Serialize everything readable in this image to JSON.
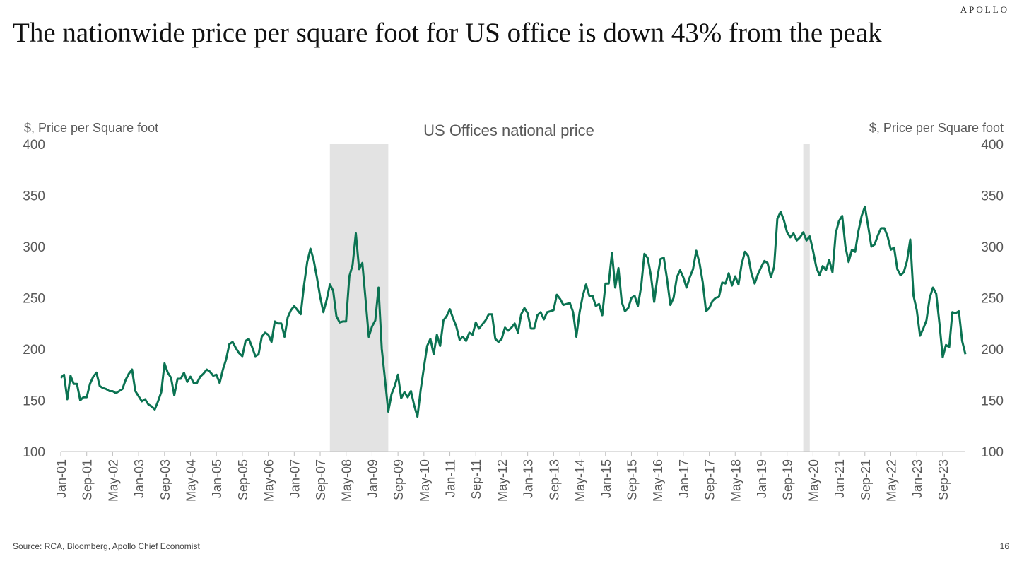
{
  "brand": "APOLLO",
  "headline": "The nationwide price per square foot for US office is down 43% from the peak",
  "source": "Source: RCA, Bloomberg, Apollo Chief Economist",
  "page_number": "16",
  "colors": {
    "line": "#0b7352",
    "recession_shade": "#e3e3e3",
    "axis_text": "#595959"
  },
  "chart_data": {
    "type": "line",
    "title": "US Offices national price",
    "ylabel_left": "$, Price per Square foot",
    "ylabel_right": "$, Price per Square foot",
    "ylim": [
      100,
      400
    ],
    "yticks": [
      100,
      150,
      200,
      250,
      300,
      350,
      400
    ],
    "grid": false,
    "x_tick_labels": [
      "Jan-01",
      "Sep-01",
      "May-02",
      "Jan-03",
      "Sep-03",
      "May-04",
      "Jan-05",
      "Sep-05",
      "May-06",
      "Jan-07",
      "Sep-07",
      "May-08",
      "Jan-09",
      "Sep-09",
      "May-10",
      "Jan-11",
      "Sep-11",
      "May-12",
      "Jan-13",
      "Sep-13",
      "May-14",
      "Jan-15",
      "Sep-15",
      "May-16",
      "Jan-17",
      "Sep-17",
      "May-18",
      "Jan-19",
      "Sep-19",
      "May-20",
      "Jan-21",
      "Sep-21",
      "May-22",
      "Jan-23",
      "Sep-23"
    ],
    "recession_shading": [
      {
        "start": "Dec-07",
        "end": "Jun-09"
      },
      {
        "start": "Feb-20",
        "end": "Apr-20"
      }
    ],
    "series": [
      {
        "start": "Jan-01",
        "frequency": "monthly",
        "values": [
          172,
          175,
          151,
          174,
          166,
          166,
          150,
          153,
          153,
          166,
          173,
          177,
          164,
          162,
          161,
          159,
          159,
          157,
          159,
          161,
          170,
          176,
          180,
          159,
          154,
          149,
          151,
          146,
          144,
          141,
          149,
          158,
          186,
          177,
          172,
          155,
          171,
          171,
          177,
          168,
          173,
          167,
          167,
          173,
          176,
          180,
          178,
          174,
          175,
          167,
          180,
          190,
          205,
          207,
          201,
          196,
          193,
          208,
          210,
          202,
          193,
          195,
          212,
          216,
          214,
          207,
          227,
          225,
          225,
          212,
          231,
          238,
          242,
          238,
          234,
          262,
          285,
          298,
          287,
          270,
          251,
          236,
          248,
          263,
          257,
          232,
          226,
          227,
          227,
          271,
          282,
          313,
          278,
          284,
          248,
          212,
          222,
          228,
          260,
          200,
          170,
          139,
          156,
          164,
          175,
          152,
          158,
          153,
          159,
          145,
          134,
          160,
          182,
          203,
          210,
          195,
          214,
          203,
          228,
          232,
          239,
          230,
          222,
          209,
          212,
          208,
          216,
          214,
          226,
          220,
          224,
          228,
          234,
          234,
          210,
          207,
          210,
          221,
          218,
          221,
          225,
          216,
          234,
          240,
          235,
          220,
          220,
          233,
          236,
          229,
          236,
          237,
          238,
          253,
          249,
          243,
          244,
          245,
          236,
          212,
          236,
          252,
          263,
          252,
          252,
          242,
          244,
          233,
          264,
          264,
          294,
          260,
          279,
          246,
          237,
          240,
          250,
          252,
          242,
          261,
          293,
          289,
          272,
          246,
          270,
          288,
          289,
          268,
          243,
          250,
          270,
          277,
          270,
          260,
          270,
          278,
          296,
          284,
          265,
          237,
          240,
          247,
          250,
          251,
          265,
          264,
          274,
          262,
          271,
          263,
          283,
          295,
          291,
          274,
          264,
          273,
          280,
          286,
          284,
          270,
          280,
          327,
          334,
          326,
          314,
          309,
          313,
          306,
          309,
          314,
          306,
          310,
          296,
          280,
          272,
          281,
          277,
          287,
          275,
          313,
          325,
          330,
          300,
          285,
          297,
          295,
          315,
          330,
          339,
          320,
          300,
          302,
          311,
          318,
          318,
          310,
          297,
          299,
          278,
          272,
          275,
          286,
          307,
          252,
          238,
          213,
          220,
          228,
          250,
          260,
          254,
          225,
          192,
          204,
          202,
          236,
          235,
          237,
          208,
          195
        ]
      }
    ]
  }
}
